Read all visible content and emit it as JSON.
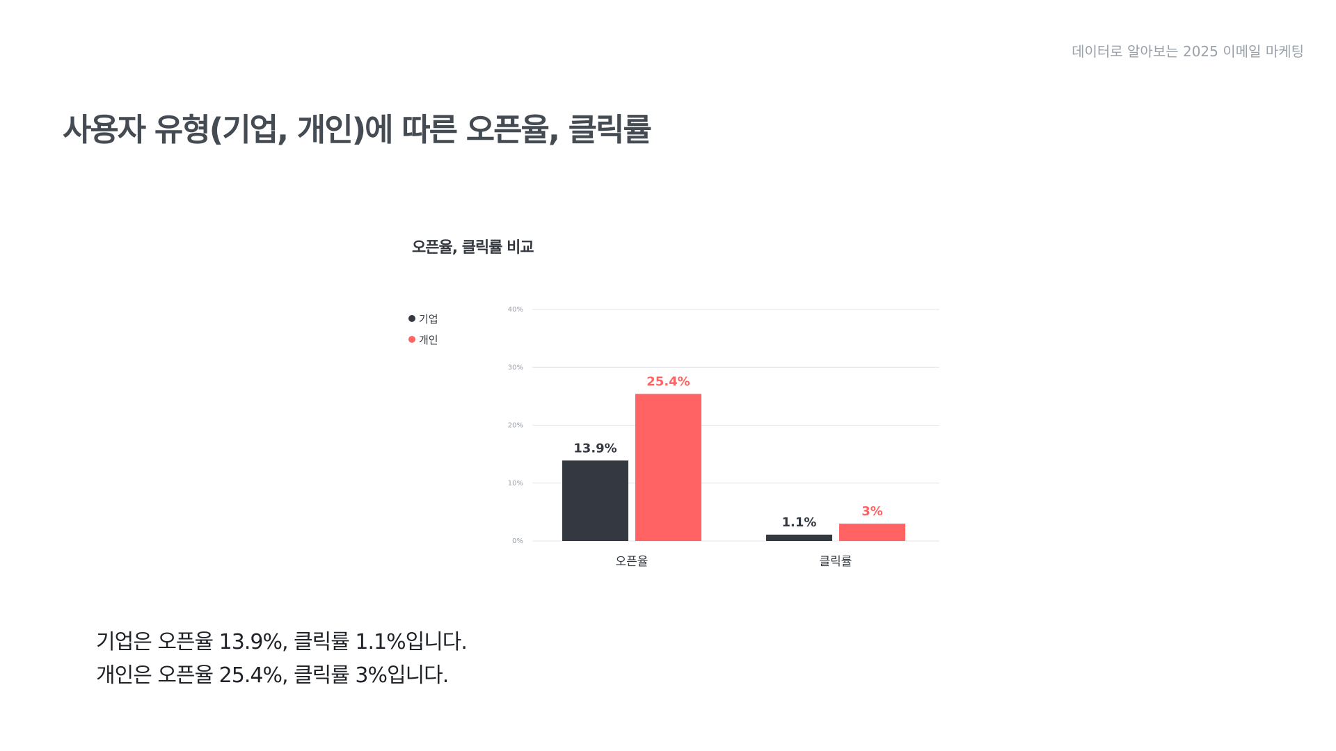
{
  "header": {
    "doc_title": "데이터로 알아보는 2025 이메일 마케팅"
  },
  "page_title": "사용자 유형(기업, 개인)에 따른 오픈율, 클릭률",
  "colors": {
    "corporate": "#343941",
    "personal": "#ff6363",
    "gridline": "#e2e4e7",
    "tick_label": "#9aa1a9"
  },
  "chart_data": {
    "type": "bar",
    "title": "오픈율, 클릭률 비교",
    "categories": [
      "오픈율",
      "클릭률"
    ],
    "series": [
      {
        "name": "기업",
        "values": [
          13.9,
          1.1
        ],
        "labels": [
          "13.9%",
          "1.1%"
        ]
      },
      {
        "name": "개인",
        "values": [
          25.4,
          3
        ],
        "labels": [
          "25.4%",
          "3%"
        ]
      }
    ],
    "yticks": [
      "0%",
      "10%",
      "20%",
      "30%",
      "40%"
    ],
    "ylim": [
      0,
      40
    ],
    "grid": true,
    "legend_position": "left"
  },
  "summary": {
    "line1": "기업은 오픈율 13.9%, 클릭률 1.1%입니다.",
    "line2": "개인은 오픈율 25.4%, 클릭률 3%입니다."
  }
}
